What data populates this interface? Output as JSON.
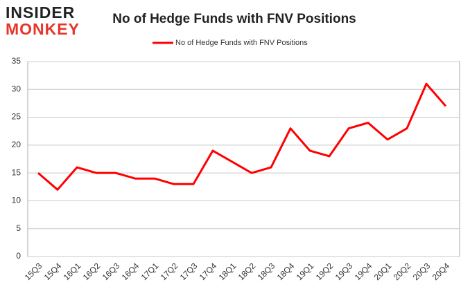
{
  "logo": {
    "line1": "INSIDER",
    "line2": "MONKEY"
  },
  "chart_data": {
    "type": "line",
    "title": "No of Hedge Funds with FNV Positions",
    "categories": [
      "15Q3",
      "15Q4",
      "16Q1",
      "16Q2",
      "16Q3",
      "16Q4",
      "17Q1",
      "17Q2",
      "17Q3",
      "17Q4",
      "18Q1",
      "18Q2",
      "18Q3",
      "18Q4",
      "19Q1",
      "19Q2",
      "19Q3",
      "19Q4",
      "20Q1",
      "20Q2",
      "20Q3",
      "20Q4"
    ],
    "series": [
      {
        "name": "No of Hedge Funds with FNV Positions",
        "color": "#ff0000",
        "values": [
          15,
          12,
          16,
          15,
          15,
          14,
          14,
          13,
          13,
          19,
          17,
          15,
          16,
          23,
          19,
          18,
          23,
          24,
          21,
          23,
          31,
          27
        ]
      }
    ],
    "ylim": [
      0,
      35
    ],
    "yticks": [
      0,
      5,
      10,
      15,
      20,
      25,
      30,
      35
    ],
    "grid": true,
    "legend": "top"
  }
}
